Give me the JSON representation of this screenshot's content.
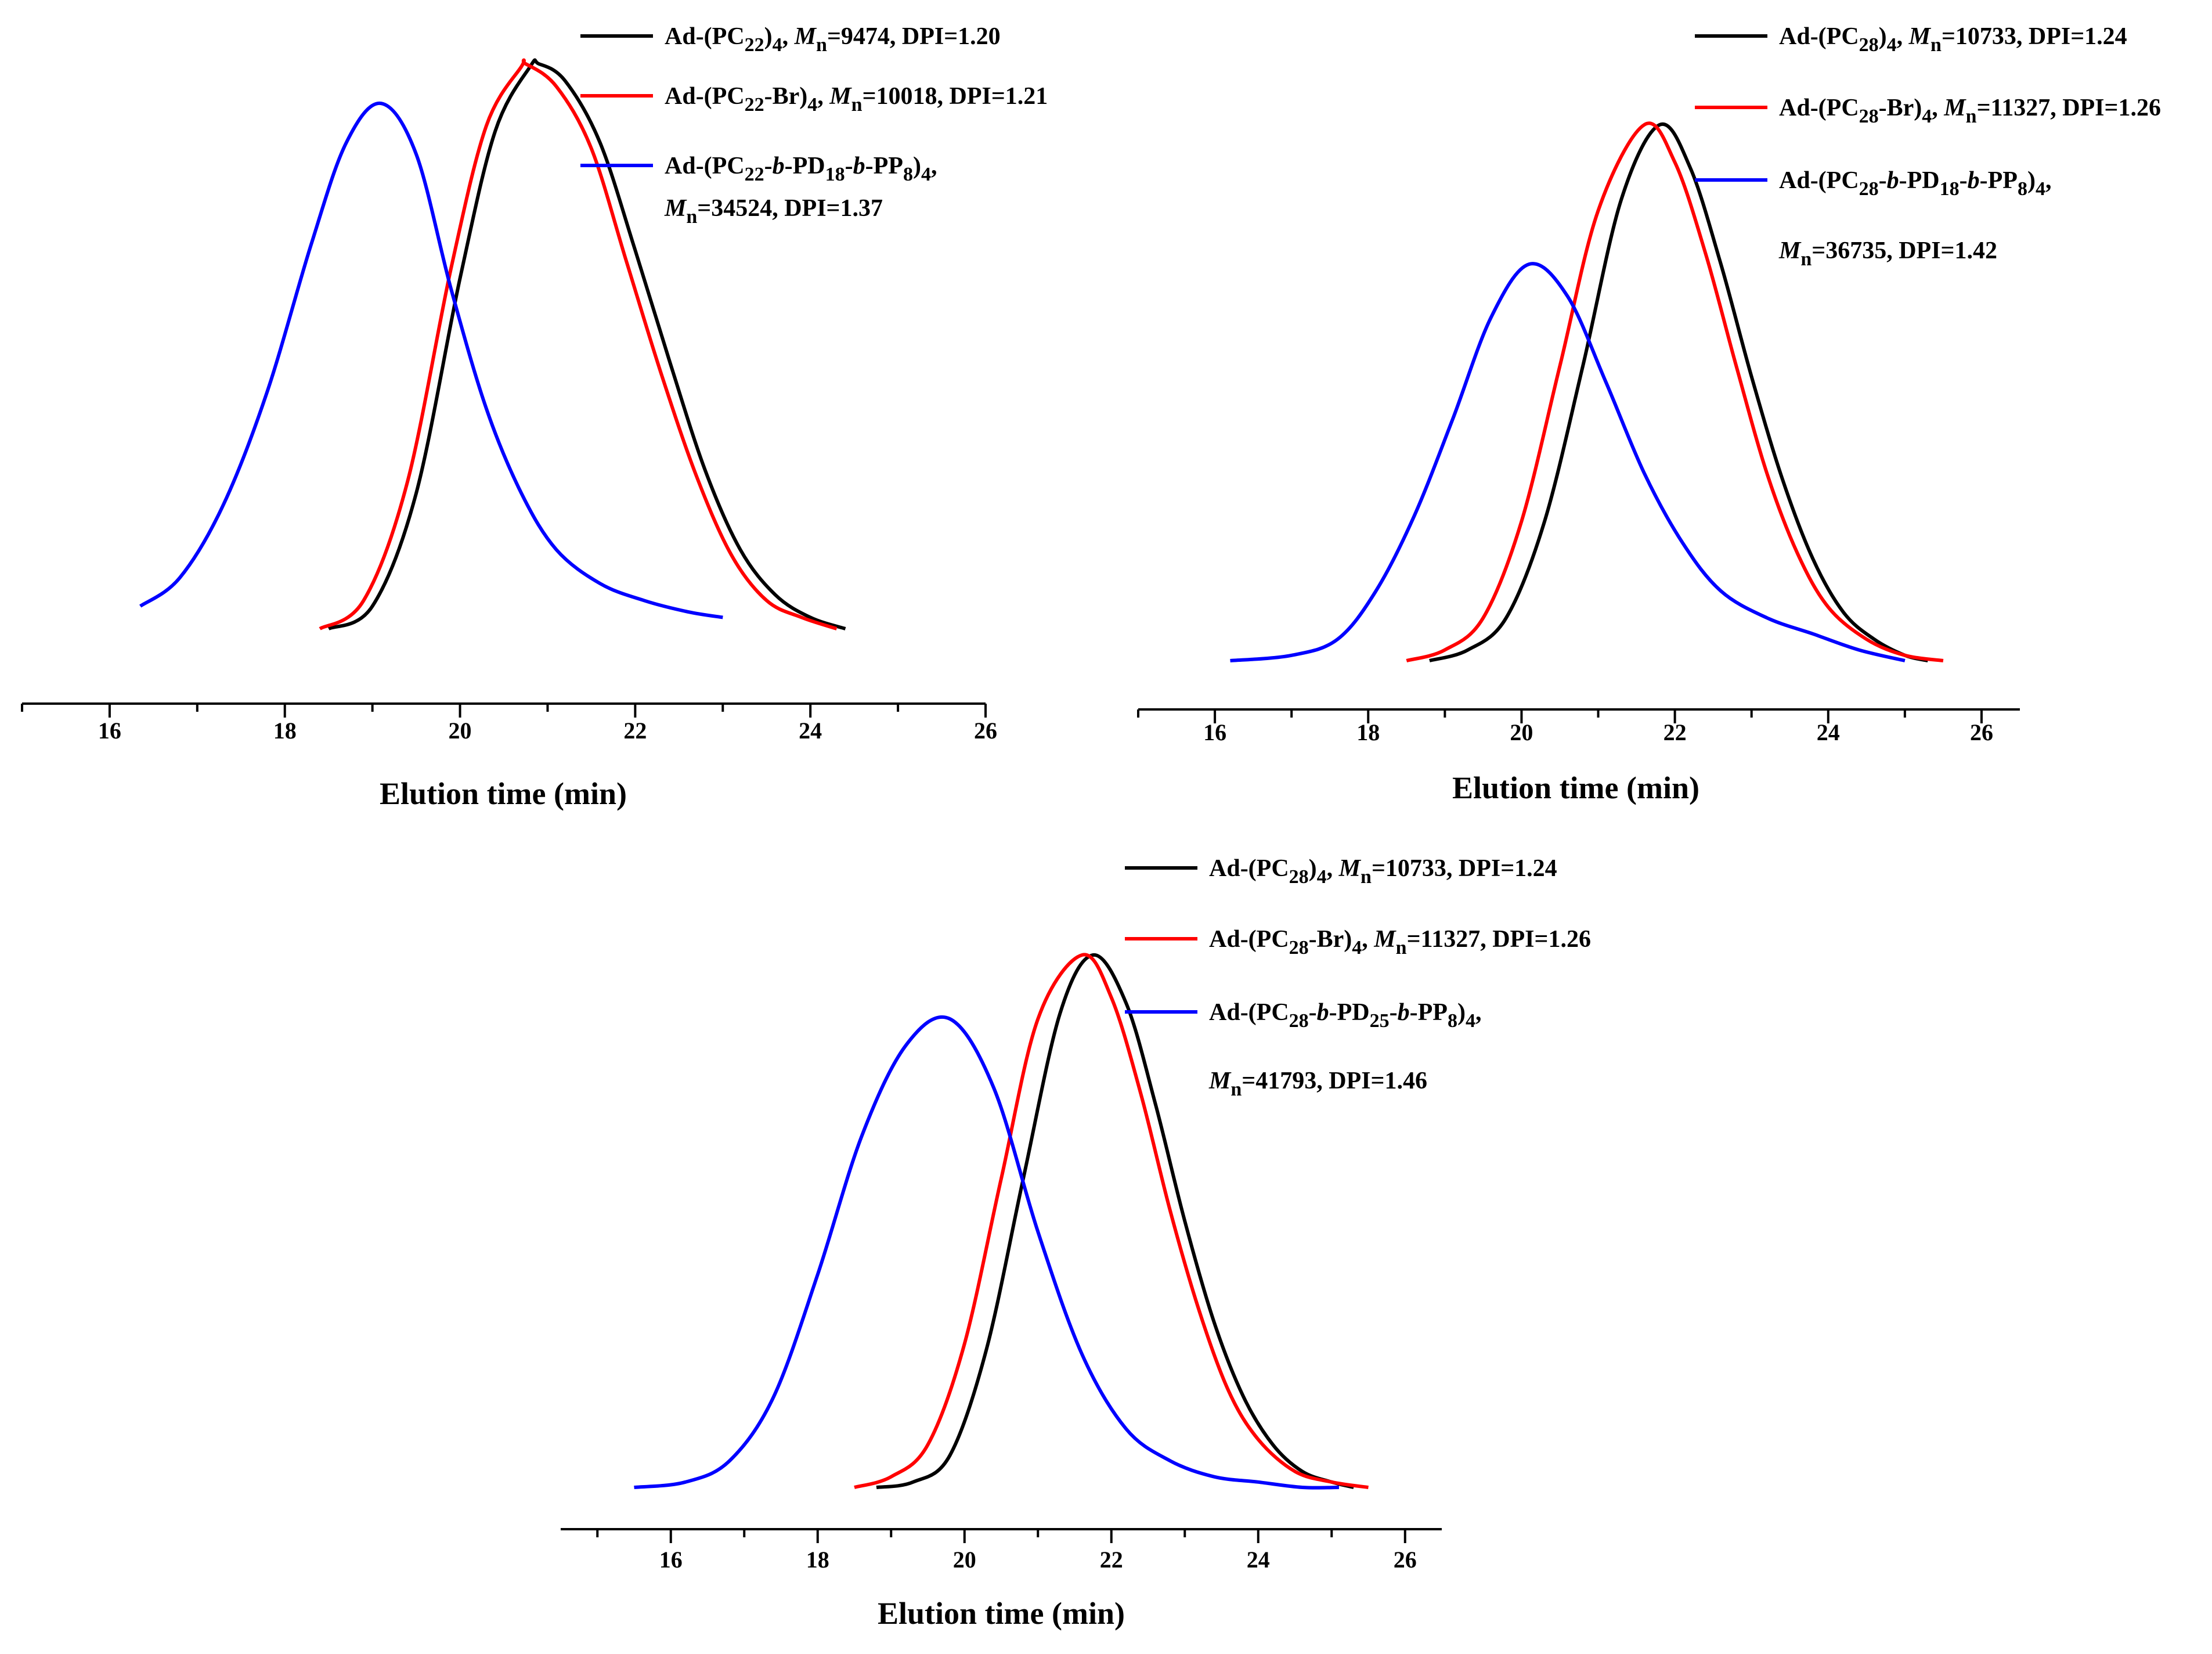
{
  "chart_data": [
    {
      "type": "line",
      "panel": "top-left",
      "xlabel": "Elution time (min)",
      "ylabel": "",
      "xlim": [
        15,
        26
      ],
      "xticks": [
        16,
        18,
        20,
        22,
        24,
        26
      ],
      "series": [
        {
          "name": "Ad-(PC22)4, Mn=9474, DPI=1.20",
          "color": "#000000",
          "legend": {
            "pre": "Ad-(PC",
            "sub1": "22",
            "mid": ")",
            "sub2": "4",
            "sep": ", ",
            "mn": "M",
            "n": "n",
            "val": "=9474, DPI=1.20"
          },
          "x": [
            18.5,
            19.0,
            19.5,
            20.0,
            20.4,
            20.8,
            20.9,
            21.2,
            21.6,
            22.0,
            22.4,
            22.8,
            23.2,
            23.6,
            24.0,
            24.4
          ],
          "y": [
            0.0,
            0.04,
            0.24,
            0.62,
            0.88,
            0.995,
            1.0,
            0.97,
            0.86,
            0.67,
            0.47,
            0.28,
            0.14,
            0.06,
            0.02,
            0.0
          ]
        },
        {
          "name": "Ad-(PC22-Br)4, Mn=10018, DPI=1.21",
          "color": "#ff0000",
          "legend": {
            "pre": "Ad-(PC",
            "sub1": "22",
            "mid": "-Br)",
            "sub2": "4",
            "sep": ", ",
            "mn": "M",
            "n": "n",
            "val": "=10018, DPI=1.21"
          },
          "x": [
            18.4,
            18.9,
            19.4,
            19.9,
            20.3,
            20.7,
            20.75,
            21.1,
            21.5,
            21.9,
            22.3,
            22.7,
            23.1,
            23.5,
            23.9,
            24.3
          ],
          "y": [
            0.0,
            0.05,
            0.26,
            0.64,
            0.89,
            0.995,
            1.0,
            0.96,
            0.85,
            0.65,
            0.45,
            0.27,
            0.13,
            0.05,
            0.02,
            0.0
          ]
        },
        {
          "name": "Ad-(PC22-b-PD18-b-PP8)4, Mn=34524, DPI=1.37",
          "color": "#0000ff",
          "legend": {
            "pre": "Ad-(PC",
            "sub1": "22",
            "b1": "-b-",
            "pd": "PD",
            "sub3": "18",
            "b2": "-b-",
            "pp": "PP",
            "sub4": "8",
            "mid": ")",
            "sub2": "4",
            "sep": ",",
            "mn": "M",
            "n": "n",
            "val": "=34524, DPI=1.37"
          },
          "x": [
            16.35,
            16.8,
            17.3,
            17.8,
            18.3,
            18.7,
            19.1,
            19.5,
            19.9,
            20.3,
            20.7,
            21.1,
            21.6,
            22.1,
            22.6,
            23.0
          ],
          "y": [
            0.04,
            0.09,
            0.22,
            0.42,
            0.68,
            0.86,
            0.93,
            0.84,
            0.6,
            0.39,
            0.24,
            0.14,
            0.08,
            0.05,
            0.03,
            0.02
          ]
        }
      ]
    },
    {
      "type": "line",
      "panel": "top-right",
      "xlabel": "Elution time (min)",
      "ylabel": "",
      "xlim": [
        15,
        26.5
      ],
      "xticks": [
        16,
        18,
        20,
        22,
        24,
        26
      ],
      "series": [
        {
          "name": "Ad-(PC28)4, Mn=10733, DPI=1.24",
          "color": "#000000",
          "legend": {
            "pre": "Ad-(PC",
            "sub1": "28",
            "mid": ")",
            "sub2": "4",
            "sep": ", ",
            "mn": "M",
            "n": "n",
            "val": "=10733, DPI=1.24"
          },
          "x": [
            18.8,
            19.3,
            19.8,
            20.3,
            20.8,
            21.3,
            21.8,
            22.2,
            22.6,
            23.0,
            23.4,
            23.8,
            24.2,
            24.6,
            25.0,
            25.3
          ],
          "y": [
            0.0,
            0.02,
            0.08,
            0.26,
            0.55,
            0.86,
            1.0,
            0.92,
            0.74,
            0.53,
            0.34,
            0.19,
            0.09,
            0.04,
            0.01,
            0.0
          ]
        },
        {
          "name": "Ad-(PC28-Br)4, Mn=11327, DPI=1.26",
          "color": "#ff0000",
          "legend": {
            "pre": "Ad-(PC",
            "sub1": "28",
            "mid": "-Br)",
            "sub2": "4",
            "sep": ", ",
            "mn": "M",
            "n": "n",
            "val": "=11327, DPI=1.26"
          },
          "x": [
            18.5,
            19.0,
            19.5,
            20.0,
            20.5,
            21.0,
            21.6,
            22.0,
            22.4,
            22.8,
            23.2,
            23.6,
            24.0,
            24.5,
            25.0,
            25.5
          ],
          "y": [
            0.0,
            0.02,
            0.08,
            0.26,
            0.55,
            0.84,
            1.0,
            0.93,
            0.76,
            0.55,
            0.35,
            0.2,
            0.1,
            0.04,
            0.01,
            0.0
          ]
        },
        {
          "name": "Ad-(PC28-b-PD18-b-PP8)4, Mn=36735, DPI=1.42",
          "color": "#0000ff",
          "legend": {
            "pre": "Ad-(PC",
            "sub1": "28",
            "b1": "-b-",
            "pd": "PD",
            "sub3": "18",
            "b2": "-b-",
            "pp": "PP",
            "sub4": "8",
            "mid": ")",
            "sub2": "4",
            "sep": ",",
            "mn": "M",
            "n": "n",
            "val": "=36735, DPI=1.42"
          },
          "x": [
            16.2,
            17.0,
            17.6,
            18.1,
            18.6,
            19.1,
            19.6,
            20.1,
            20.6,
            21.1,
            21.6,
            22.1,
            22.6,
            23.2,
            23.8,
            24.4,
            25.0
          ],
          "y": [
            0.0,
            0.01,
            0.04,
            0.13,
            0.27,
            0.45,
            0.64,
            0.74,
            0.68,
            0.52,
            0.35,
            0.22,
            0.13,
            0.08,
            0.05,
            0.02,
            0.0
          ]
        }
      ]
    },
    {
      "type": "line",
      "panel": "bottom",
      "xlabel": "Elution time (min)",
      "ylabel": "",
      "xlim": [
        14.5,
        26.5
      ],
      "xticks": [
        16,
        18,
        20,
        22,
        24,
        26
      ],
      "series": [
        {
          "name": "Ad-(PC28)4, Mn=10733, DPI=1.24",
          "color": "#000000",
          "legend": {
            "pre": "Ad-(PC",
            "sub1": "28",
            "mid": ")",
            "sub2": "4",
            "sep": ", ",
            "mn": "M",
            "n": "n",
            "val": "=10733, DPI=1.24"
          },
          "x": [
            18.8,
            19.3,
            19.8,
            20.3,
            20.8,
            21.3,
            21.75,
            22.2,
            22.6,
            23.0,
            23.4,
            23.8,
            24.2,
            24.6,
            25.0,
            25.3
          ],
          "y": [
            0.0,
            0.01,
            0.06,
            0.26,
            0.58,
            0.89,
            1.0,
            0.91,
            0.72,
            0.5,
            0.31,
            0.17,
            0.08,
            0.03,
            0.01,
            0.0
          ]
        },
        {
          "name": "Ad-(PC28-Br)4, Mn=11327, DPI=1.26",
          "color": "#ff0000",
          "legend": {
            "pre": "Ad-(PC",
            "sub1": "28",
            "mid": "-Br)",
            "sub2": "4",
            "sep": ", ",
            "mn": "M",
            "n": "n",
            "val": "=11327, DPI=1.26"
          },
          "x": [
            18.5,
            19.0,
            19.5,
            20.0,
            20.5,
            21.0,
            21.6,
            22.0,
            22.4,
            22.8,
            23.2,
            23.6,
            24.0,
            24.5,
            25.0,
            25.5
          ],
          "y": [
            0.0,
            0.02,
            0.08,
            0.27,
            0.58,
            0.88,
            1.0,
            0.92,
            0.74,
            0.52,
            0.33,
            0.18,
            0.09,
            0.03,
            0.01,
            0.0
          ]
        },
        {
          "name": "Ad-(PC28-b-PD25-b-PP8)4, Mn=41793, DPI=1.46",
          "color": "#0000ff",
          "legend": {
            "pre": "Ad-(PC",
            "sub1": "28",
            "b1": "-b-",
            "pd": "PD",
            "sub3": "25",
            "b2": "-b-",
            "pp": "PP",
            "sub4": "8",
            "mid": ")",
            "sub2": "4",
            "sep": ",",
            "mn": "M",
            "n": "n",
            "val": "=41793, DPI=1.46"
          },
          "x": [
            15.5,
            16.2,
            16.8,
            17.4,
            18.0,
            18.6,
            19.2,
            19.8,
            20.4,
            21.0,
            21.6,
            22.2,
            22.8,
            23.4,
            24.0,
            24.6,
            25.1
          ],
          "y": [
            0.0,
            0.01,
            0.05,
            0.17,
            0.4,
            0.66,
            0.83,
            0.88,
            0.75,
            0.48,
            0.25,
            0.11,
            0.05,
            0.02,
            0.01,
            0.0,
            0.0
          ]
        }
      ]
    }
  ]
}
